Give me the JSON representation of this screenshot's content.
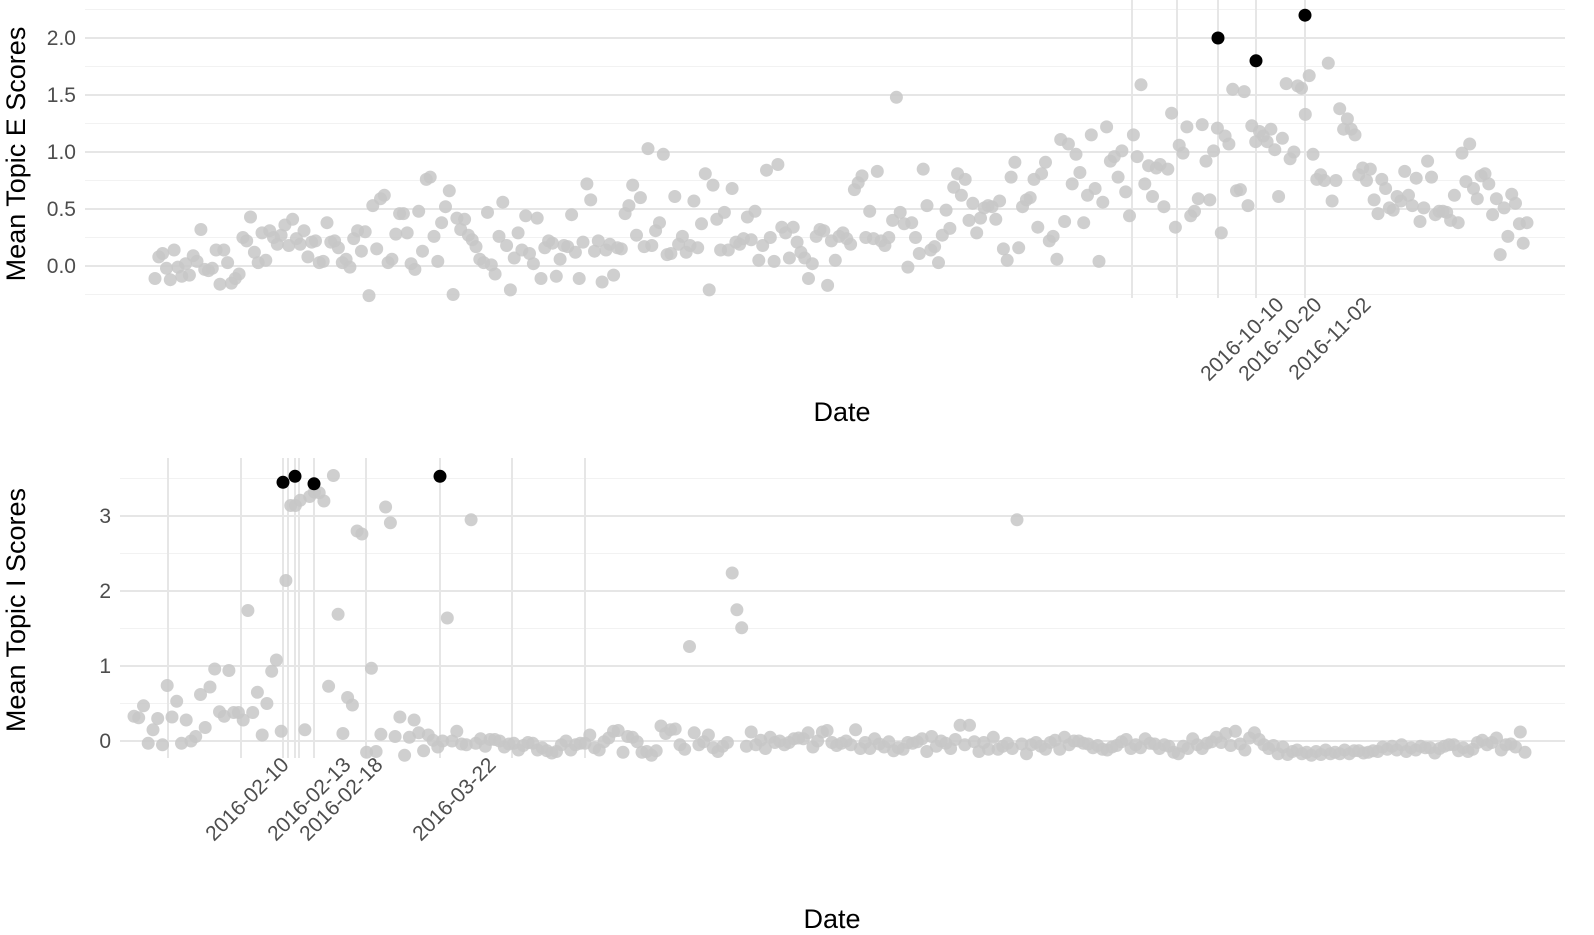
{
  "colors": {
    "points": "#c7c7c7",
    "highlight": "#000000",
    "grid": "#e6e6e6",
    "tick_text": "#4d4d4d"
  },
  "chart_data": [
    {
      "type": "scatter",
      "xlabel": "Date",
      "ylabel": "Mean Topic E Scores",
      "ylim": [
        -0.25,
        2.2
      ],
      "yticks": [
        0.0,
        0.5,
        1.0,
        1.5,
        2.0
      ],
      "ytick_labels": [
        "0.0",
        "0.5",
        "1.0",
        "1.5",
        "2.0"
      ],
      "xtick_labels": [
        "2016-10-10",
        "2016-10-20",
        "2016-11-02"
      ],
      "grid": true,
      "series": [
        {
          "values": [
            -0.11,
            0.08,
            0.11,
            -0.02,
            -0.12,
            0.14,
            -0.01,
            -0.09,
            0.02,
            -0.08,
            0.09,
            0.04,
            0.32,
            -0.03,
            -0.04,
            -0.02,
            0.14,
            -0.16,
            0.14,
            0.03,
            -0.15,
            -0.11,
            -0.07,
            0.25,
            0.22,
            0.43,
            0.12,
            0.03,
            0.29,
            0.05,
            0.31,
            0.25,
            0.19,
            0.27,
            0.36,
            0.18,
            0.41,
            0.24,
            0.19,
            0.31,
            0.08,
            0.21,
            0.22,
            0.03,
            0.04,
            0.38,
            0.21,
            0.22,
            0.16,
            0.03,
            0.06,
            -0.01,
            0.24,
            0.31,
            0.13,
            0.3,
            -0.26,
            0.53,
            0.15,
            0.59,
            0.62,
            0.03,
            0.06,
            0.28,
            0.46,
            0.46,
            0.29,
            0.02,
            -0.03,
            0.48,
            0.13,
            0.76,
            0.78,
            0.26,
            0.04,
            0.38,
            0.52,
            0.66,
            -0.25,
            0.42,
            0.32,
            0.41,
            0.27,
            0.23,
            0.17,
            0.06,
            0.03,
            0.47,
            0.01,
            -0.07,
            0.26,
            0.56,
            0.18,
            -0.21,
            0.07,
            0.29,
            0.14,
            0.44,
            0.11,
            0.02,
            0.42,
            -0.11,
            0.16,
            0.22,
            0.2,
            -0.09,
            0.06,
            0.18,
            0.17,
            0.45,
            0.12,
            -0.11,
            0.21,
            0.72,
            0.58,
            0.13,
            0.22,
            -0.14,
            0.14,
            0.19,
            -0.08,
            0.16,
            0.15,
            0.46,
            0.53,
            0.71,
            0.27,
            0.6,
            0.17,
            1.03,
            0.18,
            0.31,
            0.38,
            0.98,
            0.1,
            0.11,
            0.61,
            0.19,
            0.26,
            0.12,
            0.18,
            0.57,
            0.16,
            0.37,
            0.81,
            -0.21,
            0.71,
            0.41,
            0.14,
            0.47,
            0.14,
            0.68,
            0.21,
            0.19,
            0.24,
            0.43,
            0.23,
            0.48,
            0.05,
            0.18,
            0.84,
            0.25,
            0.04,
            0.89,
            0.34,
            0.29,
            0.07,
            0.34,
            0.21,
            0.12,
            0.07,
            -0.11,
            0.02,
            0.26,
            0.32,
            0.31,
            -0.17,
            0.22,
            0.05,
            0.26,
            0.29,
            0.24,
            0.19,
            0.67,
            0.73,
            0.79,
            0.25,
            0.48,
            0.24,
            0.83,
            0.22,
            0.18,
            0.25,
            0.4,
            1.48,
            0.47,
            0.37,
            -0.01,
            0.38,
            0.25,
            0.11,
            0.85,
            0.53,
            0.14,
            0.17,
            0.03,
            0.27,
            0.49,
            0.33,
            0.69,
            0.81,
            0.62,
            0.76,
            0.4,
            0.55,
            0.29,
            0.42,
            0.51,
            0.53,
            0.52,
            0.41,
            0.57,
            0.15,
            0.05,
            0.78,
            0.91,
            0.16,
            0.52,
            0.58,
            0.6,
            0.76,
            0.34,
            0.81,
            0.91,
            0.22,
            0.26,
            0.06,
            1.11,
            0.39,
            1.07,
            0.72,
            0.98,
            0.82,
            0.38,
            0.62,
            1.15,
            0.68,
            0.04,
            0.56,
            1.22,
            0.92,
            0.96,
            0.78,
            1.01,
            0.65,
            0.44,
            1.15,
            0.96,
            1.59,
            0.72,
            0.88,
            0.61,
            0.86,
            0.89,
            0.52,
            0.85,
            1.34,
            0.34,
            1.06,
            0.99,
            1.22,
            0.44,
            0.48,
            0.59,
            1.24,
            0.92,
            0.58,
            1.01,
            1.21,
            0.29,
            1.14,
            1.07,
            1.55,
            0.66,
            0.67,
            1.53,
            0.53,
            1.23,
            1.09,
            1.18,
            1.14,
            1.09,
            1.2,
            1.02,
            0.61,
            1.12,
            1.6,
            0.94,
            1.0,
            1.58,
            1.56,
            1.33,
            1.67,
            0.98,
            0.76,
            0.8,
            0.75,
            1.78,
            0.57,
            0.75,
            1.38,
            1.2,
            1.29,
            1.2,
            1.15,
            0.8,
            0.86,
            0.75,
            0.85,
            0.58,
            0.46,
            0.76,
            0.68,
            0.51,
            0.49,
            0.61,
            0.57,
            0.83,
            0.62,
            0.53,
            0.77,
            0.39,
            0.51,
            0.92,
            0.78,
            0.45,
            0.48,
            0.48,
            0.47,
            0.4,
            0.62,
            0.38,
            0.99,
            0.74,
            1.07,
            0.68,
            0.59,
            0.79,
            0.81,
            0.72,
            0.45,
            0.59,
            0.1,
            0.51,
            0.26,
            0.63,
            0.55,
            0.37,
            0.2,
            0.38
          ]
        },
        {
          "points": [
            {
              "x": "2016-10-10",
              "y": 2.0
            },
            {
              "x": "2016-10-20",
              "y": 1.8
            },
            {
              "x": "2016-11-02",
              "y": 2.2
            }
          ]
        }
      ]
    },
    {
      "type": "scatter",
      "xlabel": "Date",
      "ylabel": "Mean Topic I Scores",
      "ylim": [
        -0.15,
        3.65
      ],
      "yticks": [
        0,
        1,
        2,
        3
      ],
      "ytick_labels": [
        "0",
        "1",
        "2",
        "3"
      ],
      "xtick_labels": [
        "2016-02-10",
        "2016-02-13",
        "2016-02-18",
        "2016-03-22"
      ],
      "grid": true,
      "series": [
        {
          "values": [
            0.33,
            0.31,
            0.47,
            -0.03,
            0.15,
            0.3,
            -0.05,
            0.74,
            0.32,
            0.53,
            -0.03,
            0.28,
            0.0,
            0.06,
            0.62,
            0.18,
            0.72,
            0.96,
            0.39,
            0.33,
            0.94,
            0.38,
            0.38,
            0.28,
            1.74,
            0.38,
            0.65,
            0.08,
            0.5,
            0.93,
            1.08,
            0.13,
            2.14,
            3.14,
            3.14,
            3.21,
            0.15,
            3.26,
            3.32,
            3.31,
            3.2,
            0.73,
            3.54,
            1.69,
            0.1,
            0.58,
            0.48,
            2.8,
            2.76,
            -0.15,
            0.97,
            -0.14,
            0.09,
            3.12,
            2.91,
            0.06,
            0.32,
            -0.19,
            0.05,
            0.28,
            0.11,
            -0.13,
            0.08,
            0.01,
            -0.08,
            0.0,
            1.64,
            0.0,
            0.13,
            -0.04,
            -0.05,
            2.95,
            -0.03,
            0.03,
            -0.07,
            0.02,
            0.02,
            0.0,
            -0.08,
            -0.04,
            -0.03,
            -0.12,
            -0.06,
            -0.02,
            -0.03,
            -0.12,
            -0.09,
            -0.13,
            -0.16,
            -0.14,
            -0.05,
            0.0,
            -0.12,
            -0.05,
            -0.03,
            -0.03,
            0.08,
            -0.09,
            -0.12,
            -0.01,
            0.04,
            0.13,
            0.14,
            -0.15,
            0.06,
            0.05,
            -0.01,
            -0.15,
            -0.14,
            -0.19,
            -0.13,
            0.2,
            0.1,
            0.15,
            0.16,
            -0.05,
            -0.11,
            1.26,
            0.11,
            -0.05,
            -0.01,
            0.08,
            -0.09,
            -0.14,
            -0.07,
            -0.02,
            2.24,
            1.75,
            1.51,
            -0.07,
            0.12,
            -0.05,
            0.01,
            -0.1,
            0.05,
            -0.02,
            0.0,
            -0.05,
            -0.02,
            0.03,
            0.04,
            0.03,
            0.11,
            -0.08,
            0.0,
            0.12,
            0.14,
            -0.02,
            -0.06,
            -0.03,
            0.0,
            -0.05,
            0.15,
            -0.1,
            -0.02,
            -0.1,
            0.03,
            -0.04,
            -0.08,
            -0.01,
            -0.13,
            -0.09,
            -0.11,
            -0.02,
            -0.03,
            -0.01,
            0.03,
            -0.14,
            0.06,
            -0.07,
            0.0,
            -0.03,
            -0.1,
            0.02,
            0.21,
            -0.05,
            0.21,
            -0.01,
            -0.14,
            -0.02,
            -0.11,
            0.05,
            -0.11,
            -0.07,
            -0.03,
            -0.1,
            2.95,
            -0.04,
            -0.17,
            -0.05,
            -0.02,
            -0.07,
            -0.11,
            -0.02,
            0.01,
            -0.11,
            0.05,
            -0.05,
            0.0,
            0.0,
            -0.03,
            -0.04,
            -0.09,
            -0.06,
            -0.11,
            -0.12,
            -0.08,
            -0.06,
            -0.01,
            0.02,
            -0.1,
            -0.05,
            -0.09,
            0.03,
            -0.03,
            -0.04,
            -0.1,
            -0.05,
            -0.07,
            -0.15,
            -0.17,
            -0.07,
            -0.1,
            0.03,
            -0.05,
            -0.1,
            -0.03,
            -0.01,
            0.05,
            -0.02,
            0.1,
            -0.06,
            0.13,
            -0.04,
            -0.12,
            0.04,
            0.11,
            0.02,
            -0.05,
            -0.1,
            -0.06,
            -0.17,
            -0.08,
            -0.18,
            -0.14,
            -0.12,
            -0.17,
            -0.15,
            -0.19,
            -0.14,
            -0.18,
            -0.12,
            -0.17,
            -0.15,
            -0.17,
            -0.12,
            -0.17,
            -0.13,
            -0.13,
            -0.16,
            -0.15,
            -0.13,
            -0.14,
            -0.08,
            -0.11,
            -0.07,
            -0.12,
            -0.05,
            -0.14,
            -0.09,
            -0.12,
            -0.07,
            -0.09,
            -0.09,
            -0.16,
            -0.1,
            -0.07,
            -0.05,
            -0.05,
            -0.13,
            -0.09,
            -0.14,
            -0.11,
            -0.02,
            0.01,
            -0.05,
            -0.02,
            0.04,
            -0.12,
            -0.05,
            -0.04,
            -0.08,
            0.12,
            -0.15
          ]
        },
        {
          "points": [
            {
              "x": "2016-02-10",
              "y": 3.45
            },
            {
              "x": "2016-02-13",
              "y": 3.53
            },
            {
              "x": "2016-02-18",
              "y": 3.43
            },
            {
              "x": "2016-03-22",
              "y": 3.53
            }
          ]
        }
      ]
    }
  ]
}
